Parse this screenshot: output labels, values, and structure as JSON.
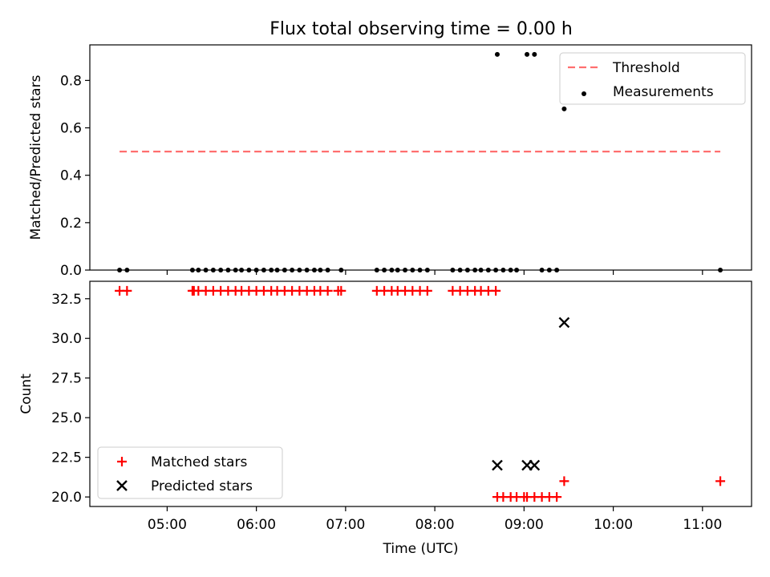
{
  "title": "Flux total observing time = 0.00 h",
  "chart_data": [
    {
      "type": "scatter",
      "ylabel": "Matched/Predicted stars",
      "xlabel": "",
      "xlim": [
        "04:08",
        "11:33"
      ],
      "ylim": [
        0,
        0.95
      ],
      "yticks": [
        0.0,
        0.2,
        0.4,
        0.6,
        0.8
      ],
      "ytick_labels": [
        "0.0",
        "0.2",
        "0.4",
        "0.6",
        "0.8"
      ],
      "legend_position": "upper right",
      "legend": [
        {
          "label": "Threshold",
          "style": "dashed-line",
          "color": "#ff6f6f"
        },
        {
          "label": "Measurements",
          "style": "dot",
          "color": "#000000"
        }
      ],
      "series": [
        {
          "name": "Threshold",
          "kind": "line",
          "color": "#ff6f6f",
          "x": [
            "04:28",
            "11:12"
          ],
          "values": [
            0.5,
            0.5
          ]
        },
        {
          "name": "Measurements",
          "kind": "scatter",
          "color": "#000000",
          "x": [
            "04:28",
            "04:33",
            "05:17",
            "05:21",
            "05:26",
            "05:31",
            "05:36",
            "05:41",
            "05:46",
            "05:50",
            "05:55",
            "06:00",
            "06:05",
            "06:10",
            "06:14",
            "06:19",
            "06:24",
            "06:29",
            "06:34",
            "06:39",
            "06:43",
            "06:48",
            "06:57",
            "07:21",
            "07:26",
            "07:31",
            "07:35",
            "07:40",
            "07:45",
            "07:50",
            "07:55",
            "08:12",
            "08:17",
            "08:22",
            "08:27",
            "08:31",
            "08:36",
            "08:41",
            "08:46",
            "08:51",
            "08:55",
            "09:12",
            "09:17",
            "09:22",
            "08:42",
            "09:02",
            "09:07",
            "09:27",
            "11:12"
          ],
          "values": [
            0,
            0,
            0,
            0,
            0,
            0,
            0,
            0,
            0,
            0,
            0,
            0,
            0,
            0,
            0,
            0,
            0,
            0,
            0,
            0,
            0,
            0,
            0,
            0,
            0,
            0,
            0,
            0,
            0,
            0,
            0,
            0,
            0,
            0,
            0,
            0,
            0,
            0,
            0,
            0,
            0,
            0,
            0,
            0,
            0.91,
            0.91,
            0.91,
            0.68,
            0
          ]
        }
      ]
    },
    {
      "type": "scatter",
      "ylabel": "Count",
      "xlabel": "Time (UTC)",
      "xlim": [
        "04:08",
        "11:33"
      ],
      "ylim": [
        19.4,
        33.6
      ],
      "yticks": [
        20.0,
        22.5,
        25.0,
        27.5,
        30.0,
        32.5
      ],
      "ytick_labels": [
        "20.0",
        "22.5",
        "25.0",
        "27.5",
        "30.0",
        "32.5"
      ],
      "xticks": [
        "05:00",
        "06:00",
        "07:00",
        "08:00",
        "09:00",
        "10:00",
        "11:00"
      ],
      "xtick_labels": [
        "05:00",
        "06:00",
        "07:00",
        "08:00",
        "09:00",
        "10:00",
        "11:00"
      ],
      "legend_position": "lower left",
      "legend": [
        {
          "label": "Matched stars",
          "style": "plus",
          "color": "#ff0000"
        },
        {
          "label": "Predicted stars",
          "style": "x",
          "color": "#000000"
        }
      ],
      "series": [
        {
          "name": "Matched stars",
          "kind": "scatter",
          "marker": "plus",
          "color": "#ff0000",
          "x": [
            "04:28",
            "04:33",
            "05:17",
            "05:18",
            "05:21",
            "05:26",
            "05:31",
            "05:36",
            "05:41",
            "05:46",
            "05:50",
            "05:55",
            "06:00",
            "06:05",
            "06:10",
            "06:14",
            "06:19",
            "06:24",
            "06:29",
            "06:34",
            "06:39",
            "06:43",
            "06:48",
            "06:55",
            "06:57",
            "07:21",
            "07:26",
            "07:31",
            "07:35",
            "07:40",
            "07:45",
            "07:50",
            "07:55",
            "08:12",
            "08:17",
            "08:22",
            "08:27",
            "08:31",
            "08:36",
            "08:41",
            "08:42",
            "08:46",
            "08:51",
            "08:55",
            "09:00",
            "09:02",
            "09:07",
            "09:12",
            "09:17",
            "09:22",
            "09:27",
            "11:12"
          ],
          "values": [
            33,
            33,
            33,
            33,
            33,
            33,
            33,
            33,
            33,
            33,
            33,
            33,
            33,
            33,
            33,
            33,
            33,
            33,
            33,
            33,
            33,
            33,
            33,
            33,
            33,
            33,
            33,
            33,
            33,
            33,
            33,
            33,
            33,
            33,
            33,
            33,
            33,
            33,
            33,
            33,
            20,
            20,
            20,
            20,
            20,
            20,
            20,
            20,
            20,
            20,
            21,
            21
          ]
        },
        {
          "name": "Predicted stars",
          "kind": "scatter",
          "marker": "x",
          "color": "#000000",
          "x": [
            "08:42",
            "09:02",
            "09:07",
            "09:27"
          ],
          "values": [
            22,
            22,
            22,
            31
          ]
        }
      ]
    }
  ]
}
